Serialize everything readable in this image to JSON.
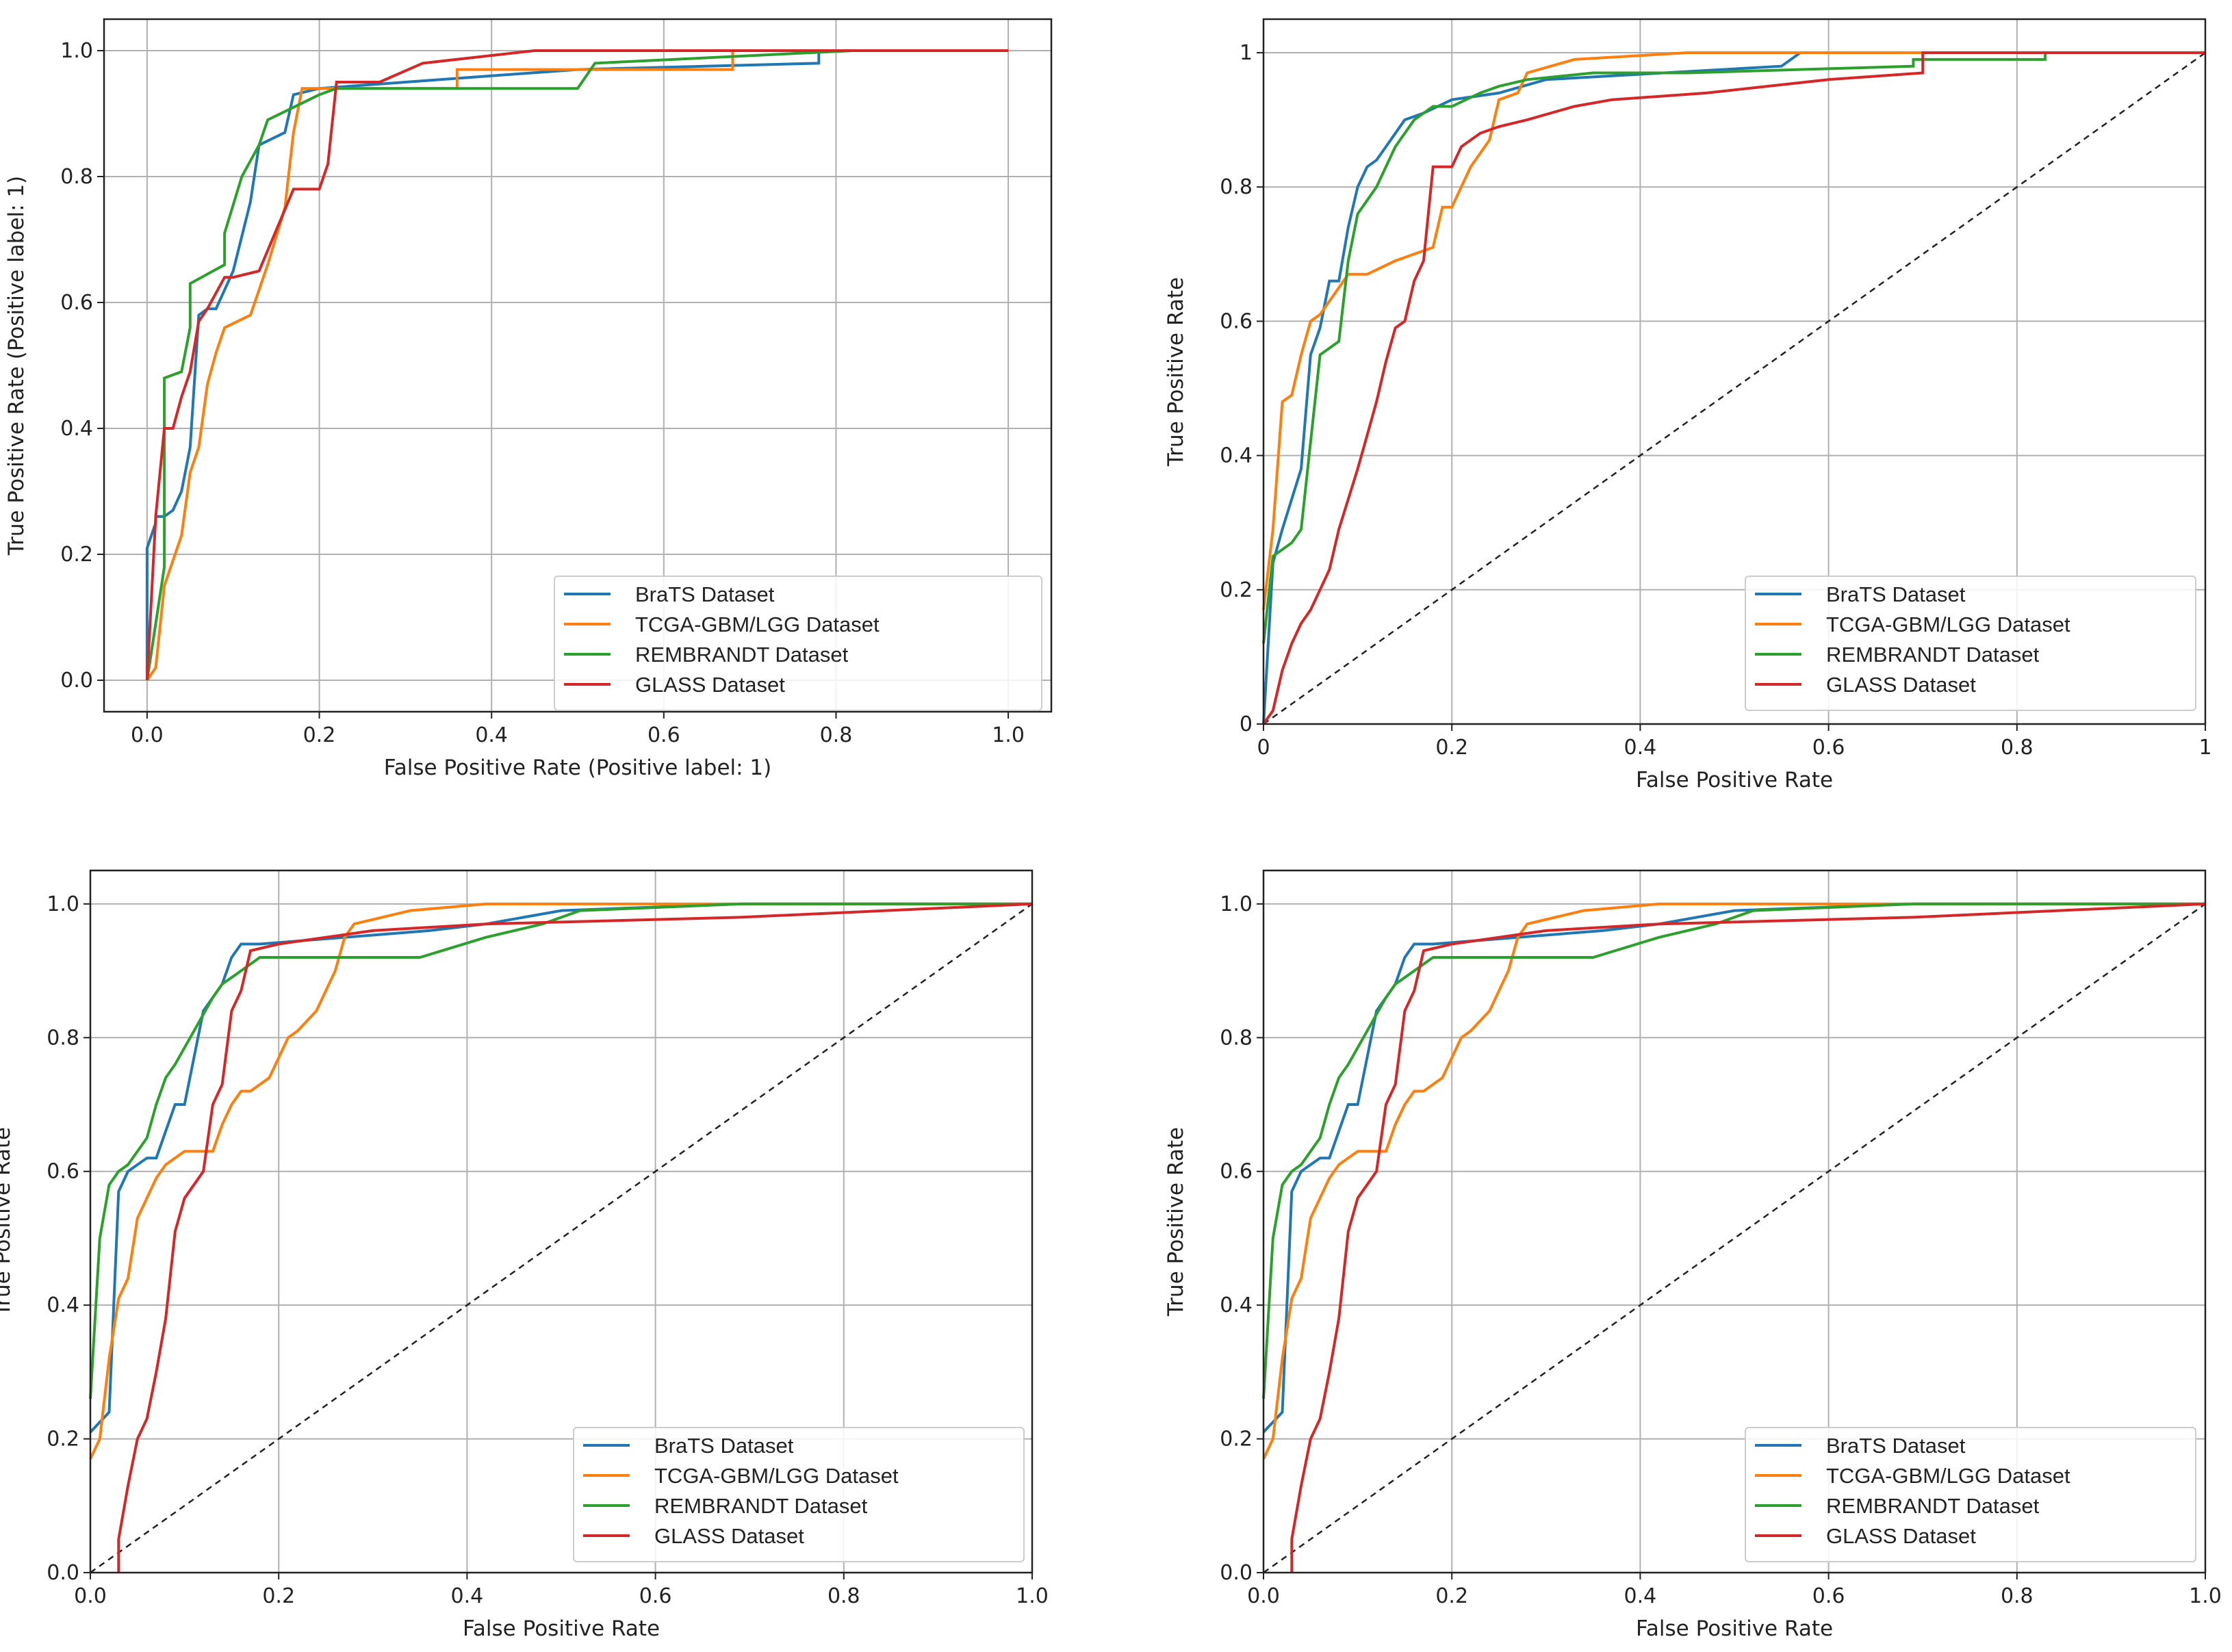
{
  "colors": {
    "brats": "#1f77b4",
    "tcga": "#ff7f0e",
    "rembrandt": "#2ca02c",
    "glass": "#d62728",
    "diag": "#222222",
    "grid": "#b0b0b0"
  },
  "chart_data": [
    {
      "type": "line",
      "panel": "top-left",
      "xlabel": "False Positive Rate (Positive label: 1)",
      "ylabel": "True Positive Rate (Positive label: 1)",
      "xlim": [
        -0.05,
        1.05
      ],
      "ylim": [
        -0.05,
        1.05
      ],
      "xticks": [
        0.0,
        0.2,
        0.4,
        0.6,
        0.8,
        1.0
      ],
      "yticks": [
        0.0,
        0.2,
        0.4,
        0.6,
        0.8,
        1.0
      ],
      "xtick_labels": [
        "0.0",
        "0.2",
        "0.4",
        "0.6",
        "0.8",
        "1.0"
      ],
      "ytick_labels": [
        "0.0",
        "0.2",
        "0.4",
        "0.6",
        "0.8",
        "1.0"
      ],
      "grid": true,
      "diagonal": false,
      "legend_position": "lower-right",
      "series": [
        {
          "name": "BraTS Dataset",
          "color_key": "brats",
          "x": [
            0,
            0,
            0.01,
            0.01,
            0.02,
            0.03,
            0.04,
            0.05,
            0.06,
            0.07,
            0.08,
            0.1,
            0.12,
            0.13,
            0.16,
            0.17,
            0.2,
            0.3,
            0.5,
            0.78,
            0.78,
            1.0
          ],
          "y": [
            0,
            0.21,
            0.25,
            0.26,
            0.26,
            0.27,
            0.3,
            0.37,
            0.58,
            0.59,
            0.59,
            0.65,
            0.76,
            0.85,
            0.87,
            0.93,
            0.94,
            0.95,
            0.97,
            0.98,
            1.0,
            1.0
          ]
        },
        {
          "name": "TCGA-GBM/LGG Dataset",
          "color_key": "tcga",
          "x": [
            0,
            0.01,
            0.02,
            0.04,
            0.05,
            0.06,
            0.07,
            0.08,
            0.09,
            0.12,
            0.14,
            0.16,
            0.17,
            0.18,
            0.2,
            0.36,
            0.36,
            0.68,
            0.68,
            1.0
          ],
          "y": [
            0,
            0.02,
            0.15,
            0.23,
            0.33,
            0.37,
            0.47,
            0.52,
            0.56,
            0.58,
            0.66,
            0.75,
            0.87,
            0.94,
            0.94,
            0.94,
            0.97,
            0.97,
            1.0,
            1.0
          ]
        },
        {
          "name": "REMBRANDT Dataset",
          "color_key": "rembrandt",
          "x": [
            0,
            0.02,
            0.02,
            0.04,
            0.05,
            0.05,
            0.09,
            0.09,
            0.11,
            0.13,
            0.14,
            0.17,
            0.2,
            0.22,
            0.5,
            0.52,
            0.82,
            1.0
          ],
          "y": [
            0,
            0.18,
            0.48,
            0.49,
            0.56,
            0.63,
            0.66,
            0.71,
            0.8,
            0.85,
            0.89,
            0.91,
            0.93,
            0.94,
            0.94,
            0.98,
            1.0,
            1.0
          ]
        },
        {
          "name": "GLASS  Dataset",
          "color_key": "glass",
          "x": [
            0,
            0.01,
            0.02,
            0.03,
            0.04,
            0.05,
            0.06,
            0.07,
            0.09,
            0.1,
            0.13,
            0.17,
            0.2,
            0.21,
            0.22,
            0.27,
            0.32,
            0.45,
            1.0
          ],
          "y": [
            0,
            0.26,
            0.4,
            0.4,
            0.45,
            0.49,
            0.57,
            0.59,
            0.64,
            0.64,
            0.65,
            0.78,
            0.78,
            0.82,
            0.95,
            0.95,
            0.98,
            1.0,
            1.0
          ]
        }
      ]
    },
    {
      "type": "line",
      "panel": "top-right",
      "xlabel": "False Positive Rate",
      "ylabel": "True Positive Rate",
      "xlim": [
        0,
        1
      ],
      "ylim": [
        0,
        1.05
      ],
      "xticks": [
        0,
        0.2,
        0.4,
        0.6,
        0.8,
        1.0
      ],
      "yticks": [
        0,
        0.2,
        0.4,
        0.6,
        0.8,
        1.0
      ],
      "xtick_labels": [
        "0",
        "0.2",
        "0.4",
        "0.6",
        "0.8",
        "1"
      ],
      "ytick_labels": [
        "0",
        "0.2",
        "0.4",
        "0.6",
        "0.8",
        "1"
      ],
      "grid": true,
      "diagonal": true,
      "legend_position": "lower-right",
      "series": [
        {
          "name": "BraTS Dataset",
          "color_key": "brats",
          "x": [
            0,
            0.01,
            0.02,
            0.04,
            0.05,
            0.06,
            0.07,
            0.08,
            0.09,
            0.1,
            0.11,
            0.12,
            0.13,
            0.14,
            0.15,
            0.17,
            0.2,
            0.25,
            0.3,
            0.55,
            0.57,
            1.0
          ],
          "y": [
            0,
            0.24,
            0.29,
            0.38,
            0.55,
            0.59,
            0.66,
            0.66,
            0.74,
            0.8,
            0.83,
            0.84,
            0.86,
            0.88,
            0.9,
            0.91,
            0.93,
            0.94,
            0.96,
            0.98,
            1.0,
            1.0
          ]
        },
        {
          "name": "TCGA-GBM/LGG Dataset",
          "color_key": "tcga",
          "x": [
            0,
            0.01,
            0.02,
            0.03,
            0.04,
            0.05,
            0.06,
            0.09,
            0.11,
            0.14,
            0.16,
            0.18,
            0.19,
            0.2,
            0.22,
            0.24,
            0.25,
            0.27,
            0.28,
            0.33,
            0.45,
            1.0
          ],
          "y": [
            0.17,
            0.29,
            0.48,
            0.49,
            0.55,
            0.6,
            0.61,
            0.67,
            0.67,
            0.69,
            0.7,
            0.71,
            0.77,
            0.77,
            0.83,
            0.87,
            0.93,
            0.94,
            0.97,
            0.99,
            1.0,
            1.0
          ]
        },
        {
          "name": "REMBRANDT Dataset",
          "color_key": "rembrandt",
          "x": [
            0,
            0.01,
            0.02,
            0.03,
            0.04,
            0.05,
            0.06,
            0.08,
            0.09,
            0.1,
            0.12,
            0.14,
            0.16,
            0.18,
            0.2,
            0.23,
            0.25,
            0.28,
            0.35,
            0.45,
            0.69,
            0.69,
            0.83,
            0.83,
            1.0
          ],
          "y": [
            0.12,
            0.25,
            0.26,
            0.27,
            0.29,
            0.42,
            0.55,
            0.57,
            0.69,
            0.76,
            0.8,
            0.86,
            0.9,
            0.92,
            0.92,
            0.94,
            0.95,
            0.96,
            0.97,
            0.97,
            0.98,
            0.99,
            0.99,
            1.0,
            1.0
          ]
        },
        {
          "name": "GLASS  Dataset",
          "color_key": "glass",
          "x": [
            0,
            0.01,
            0.02,
            0.03,
            0.04,
            0.05,
            0.06,
            0.07,
            0.08,
            0.1,
            0.11,
            0.12,
            0.13,
            0.14,
            0.15,
            0.16,
            0.17,
            0.18,
            0.2,
            0.21,
            0.23,
            0.25,
            0.28,
            0.33,
            0.37,
            0.47,
            0.6,
            0.7,
            0.7,
            1.0
          ],
          "y": [
            0,
            0.02,
            0.08,
            0.12,
            0.15,
            0.17,
            0.2,
            0.23,
            0.29,
            0.38,
            0.43,
            0.48,
            0.54,
            0.59,
            0.6,
            0.66,
            0.69,
            0.83,
            0.83,
            0.86,
            0.88,
            0.89,
            0.9,
            0.92,
            0.93,
            0.94,
            0.96,
            0.97,
            1.0,
            1.0
          ]
        }
      ]
    },
    {
      "type": "line",
      "panel": "bottom-left",
      "xlabel": "False Positive Rate",
      "ylabel": "True Positive Rate",
      "xlim": [
        0,
        1
      ],
      "ylim": [
        0,
        1.05
      ],
      "xticks": [
        0,
        0.2,
        0.4,
        0.6,
        0.8,
        1.0
      ],
      "yticks": [
        0,
        0.2,
        0.4,
        0.6,
        0.8,
        1.0
      ],
      "xtick_labels": [
        "0.0",
        "0.2",
        "0.4",
        "0.6",
        "0.8",
        "1.0"
      ],
      "ytick_labels": [
        "0.0",
        "0.2",
        "0.4",
        "0.6",
        "0.8",
        "1.0"
      ],
      "grid": true,
      "diagonal": true,
      "legend_position": "lower-right",
      "series": [
        {
          "name": "BraTS Dataset",
          "color_key": "brats",
          "x": [
            0,
            0.02,
            0.03,
            0.04,
            0.05,
            0.06,
            0.07,
            0.09,
            0.1,
            0.12,
            0.14,
            0.15,
            0.16,
            0.18,
            0.36,
            0.42,
            0.5,
            0.69,
            1.0
          ],
          "y": [
            0.21,
            0.24,
            0.57,
            0.6,
            0.61,
            0.62,
            0.62,
            0.7,
            0.7,
            0.84,
            0.88,
            0.92,
            0.94,
            0.94,
            0.96,
            0.97,
            0.99,
            1.0,
            1.0
          ]
        },
        {
          "name": "TCGA-GBM/LGG Dataset",
          "color_key": "tcga",
          "x": [
            0,
            0.01,
            0.02,
            0.03,
            0.04,
            0.05,
            0.07,
            0.08,
            0.1,
            0.13,
            0.14,
            0.15,
            0.16,
            0.17,
            0.19,
            0.2,
            0.21,
            0.22,
            0.24,
            0.26,
            0.27,
            0.28,
            0.34,
            0.42,
            0.5,
            1.0
          ],
          "y": [
            0.17,
            0.2,
            0.32,
            0.41,
            0.44,
            0.53,
            0.59,
            0.61,
            0.63,
            0.63,
            0.67,
            0.7,
            0.72,
            0.72,
            0.74,
            0.77,
            0.8,
            0.81,
            0.84,
            0.9,
            0.95,
            0.97,
            0.99,
            1.0,
            1.0,
            1.0
          ]
        },
        {
          "name": "REMBRANDT Dataset",
          "color_key": "rembrandt",
          "x": [
            0,
            0.01,
            0.02,
            0.03,
            0.04,
            0.05,
            0.06,
            0.07,
            0.08,
            0.09,
            0.11,
            0.13,
            0.14,
            0.16,
            0.18,
            0.2,
            0.35,
            0.42,
            0.48,
            0.52,
            0.69,
            1.0
          ],
          "y": [
            0.26,
            0.5,
            0.58,
            0.6,
            0.61,
            0.63,
            0.65,
            0.7,
            0.74,
            0.76,
            0.81,
            0.86,
            0.88,
            0.9,
            0.92,
            0.92,
            0.92,
            0.95,
            0.97,
            0.99,
            1.0,
            1.0
          ]
        },
        {
          "name": "GLASS  Dataset",
          "color_key": "glass",
          "x": [
            0.03,
            0.03,
            0.04,
            0.05,
            0.06,
            0.07,
            0.08,
            0.09,
            0.1,
            0.12,
            0.13,
            0.14,
            0.15,
            0.16,
            0.17,
            0.2,
            0.3,
            0.42,
            0.69,
            1.0
          ],
          "y": [
            0,
            0.05,
            0.13,
            0.2,
            0.23,
            0.3,
            0.38,
            0.51,
            0.56,
            0.6,
            0.7,
            0.73,
            0.84,
            0.87,
            0.93,
            0.94,
            0.96,
            0.97,
            0.98,
            1.0
          ]
        }
      ]
    },
    {
      "type": "line",
      "panel": "bottom-right",
      "xlabel": "False Positive Rate",
      "ylabel": "True Positive Rate",
      "xlim": [
        0,
        1
      ],
      "ylim": [
        0,
        1.05
      ],
      "xticks": [
        0,
        0.2,
        0.4,
        0.6,
        0.8,
        1.0
      ],
      "yticks": [
        0,
        0.2,
        0.4,
        0.6,
        0.8,
        1.0
      ],
      "xtick_labels": [
        "0.0",
        "0.2",
        "0.4",
        "0.6",
        "0.8",
        "1.0"
      ],
      "ytick_labels": [
        "0.0",
        "0.2",
        "0.4",
        "0.6",
        "0.8",
        "1.0"
      ],
      "grid": true,
      "diagonal": true,
      "legend_position": "lower-right",
      "series": [
        {
          "name": "BraTS Dataset",
          "color_key": "brats",
          "x": [
            0,
            0.02,
            0.03,
            0.04,
            0.05,
            0.06,
            0.07,
            0.09,
            0.1,
            0.12,
            0.14,
            0.15,
            0.16,
            0.18,
            0.36,
            0.42,
            0.5,
            0.69,
            1.0
          ],
          "y": [
            0.21,
            0.24,
            0.57,
            0.6,
            0.61,
            0.62,
            0.62,
            0.7,
            0.7,
            0.84,
            0.88,
            0.92,
            0.94,
            0.94,
            0.96,
            0.97,
            0.99,
            1.0,
            1.0
          ]
        },
        {
          "name": "TCGA-GBM/LGG Dataset",
          "color_key": "tcga",
          "x": [
            0,
            0.01,
            0.02,
            0.03,
            0.04,
            0.05,
            0.07,
            0.08,
            0.1,
            0.13,
            0.14,
            0.15,
            0.16,
            0.17,
            0.19,
            0.2,
            0.21,
            0.22,
            0.24,
            0.26,
            0.27,
            0.28,
            0.34,
            0.42,
            0.5,
            1.0
          ],
          "y": [
            0.17,
            0.2,
            0.32,
            0.41,
            0.44,
            0.53,
            0.59,
            0.61,
            0.63,
            0.63,
            0.67,
            0.7,
            0.72,
            0.72,
            0.74,
            0.77,
            0.8,
            0.81,
            0.84,
            0.9,
            0.95,
            0.97,
            0.99,
            1.0,
            1.0,
            1.0
          ]
        },
        {
          "name": "REMBRANDT Dataset",
          "color_key": "rembrandt",
          "x": [
            0,
            0.01,
            0.02,
            0.03,
            0.04,
            0.05,
            0.06,
            0.07,
            0.08,
            0.09,
            0.11,
            0.13,
            0.14,
            0.16,
            0.18,
            0.2,
            0.35,
            0.42,
            0.48,
            0.52,
            0.69,
            1.0
          ],
          "y": [
            0.26,
            0.5,
            0.58,
            0.6,
            0.61,
            0.63,
            0.65,
            0.7,
            0.74,
            0.76,
            0.81,
            0.86,
            0.88,
            0.9,
            0.92,
            0.92,
            0.92,
            0.95,
            0.97,
            0.99,
            1.0,
            1.0
          ]
        },
        {
          "name": "GLASS  Dataset",
          "color_key": "glass",
          "x": [
            0.03,
            0.03,
            0.04,
            0.05,
            0.06,
            0.07,
            0.08,
            0.09,
            0.1,
            0.12,
            0.13,
            0.14,
            0.15,
            0.16,
            0.17,
            0.2,
            0.3,
            0.42,
            0.69,
            1.0
          ],
          "y": [
            0,
            0.05,
            0.13,
            0.2,
            0.23,
            0.3,
            0.38,
            0.51,
            0.56,
            0.6,
            0.7,
            0.73,
            0.84,
            0.87,
            0.93,
            0.94,
            0.96,
            0.97,
            0.98,
            1.0
          ]
        }
      ]
    }
  ]
}
